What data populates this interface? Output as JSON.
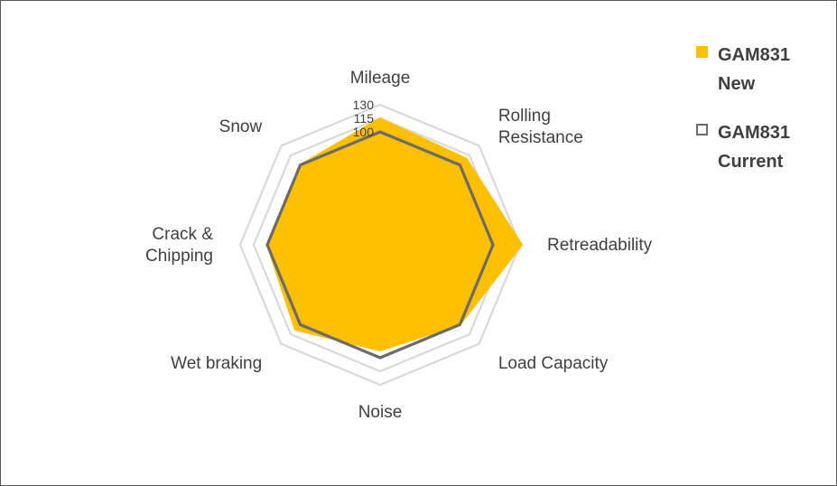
{
  "chart_data": {
    "type": "radar",
    "categories": [
      "Mileage",
      "Rolling\nResistance",
      "Retreadability",
      "Load Capacity",
      "Noise",
      "Wet braking",
      "Crack &\nChipping",
      "Snow"
    ],
    "axis_ticks": [
      100,
      115,
      130
    ],
    "series": [
      {
        "name": "GAM831\nNew",
        "values": [
          115,
          110,
          132,
          100,
          92,
          108,
          100,
          100
        ],
        "color": "#FFC000",
        "style": "filled"
      },
      {
        "name": "GAM831\nCurrent",
        "values": [
          100,
          100,
          100,
          100,
          100,
          100,
          100,
          100
        ],
        "color": "#6b6b6b",
        "style": "outline"
      }
    ],
    "grid": true,
    "legend_position": "top-right"
  }
}
